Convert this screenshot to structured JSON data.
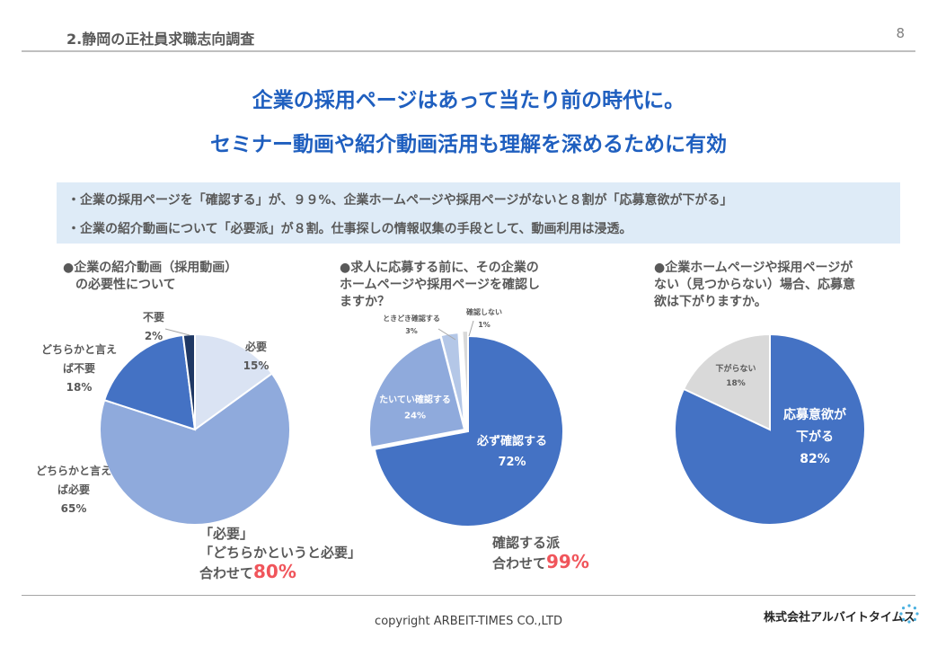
{
  "header": {
    "section_title": "2.静岡の正社員求職志向調査",
    "page_number": "8"
  },
  "headline": {
    "line1": "企業の採用ページはあって当たり前の時代に。",
    "line2": "セミナー動画や紹介動画活用も理解を深めるために有効"
  },
  "bullets": [
    "・企業の採用ページを「確認する」が、９９%、企業ホームページや採用ページがないと８割が「応募意欲が下がる」",
    "・企業の紹介動画について「必要派」が８割。仕事探しの情報収集の手段として、動画利用は浸透。"
  ],
  "chart_data": [
    {
      "type": "pie",
      "title_lines": [
        "●企業の紹介動画（採用動画）",
        "　の必要性について"
      ],
      "slices": [
        {
          "label_lines": [
            "必要"
          ],
          "value": 15,
          "value_label": "15%",
          "color": "#dae3f3"
        },
        {
          "label_lines": [
            "どちらかと言え",
            "ば必要"
          ],
          "value": 65,
          "value_label": "65%",
          "color": "#8faadc"
        },
        {
          "label_lines": [
            "どちらかと言え",
            "ば不要"
          ],
          "value": 18,
          "value_label": "18%",
          "color": "#4472c4"
        },
        {
          "label_lines": [
            "不要"
          ],
          "value": 2,
          "value_label": "2%",
          "color": "#1f3864"
        }
      ],
      "summary": {
        "lines": [
          "「必要」",
          "「どちらかというと必要」"
        ],
        "prefix": "合わせて",
        "highlight": "80%"
      }
    },
    {
      "type": "pie",
      "title_lines": [
        "●求人に応募する前に、その企業の",
        "ホームページや採用ページを確認し",
        "ますか？"
      ],
      "slices": [
        {
          "label_lines": [
            "必ず確認する"
          ],
          "value": 72,
          "value_label": "72%",
          "color": "#4472c4"
        },
        {
          "label_lines": [
            "たいてい確認する"
          ],
          "value": 24,
          "value_label": "24%",
          "color": "#8faadc"
        },
        {
          "label_lines": [
            "ときどき確認する"
          ],
          "value": 3,
          "value_label": "3%",
          "color": "#b4c7e7"
        },
        {
          "label_lines": [
            "確認しない"
          ],
          "value": 1,
          "value_label": "1%",
          "color": "#d9d9d9"
        }
      ],
      "summary": {
        "lines": [
          "確認する派"
        ],
        "prefix": "合わせて",
        "highlight": "99%"
      }
    },
    {
      "type": "pie",
      "title_lines": [
        "●企業ホームページや採用ページが",
        "ない（見つからない）場合、応募意",
        "欲は下がりますか。"
      ],
      "slices": [
        {
          "label_lines": [
            "応募意欲が",
            "下がる"
          ],
          "value": 82,
          "value_label": "82%",
          "color": "#4472c4"
        },
        {
          "label_lines": [
            "下がらない"
          ],
          "value": 18,
          "value_label": "18%",
          "color": "#d9d9d9"
        }
      ]
    }
  ],
  "footer": {
    "copyright": "copyright ARBEIT-TIMES CO.,LTD",
    "company": "株式会社アルバイトタイムス"
  }
}
